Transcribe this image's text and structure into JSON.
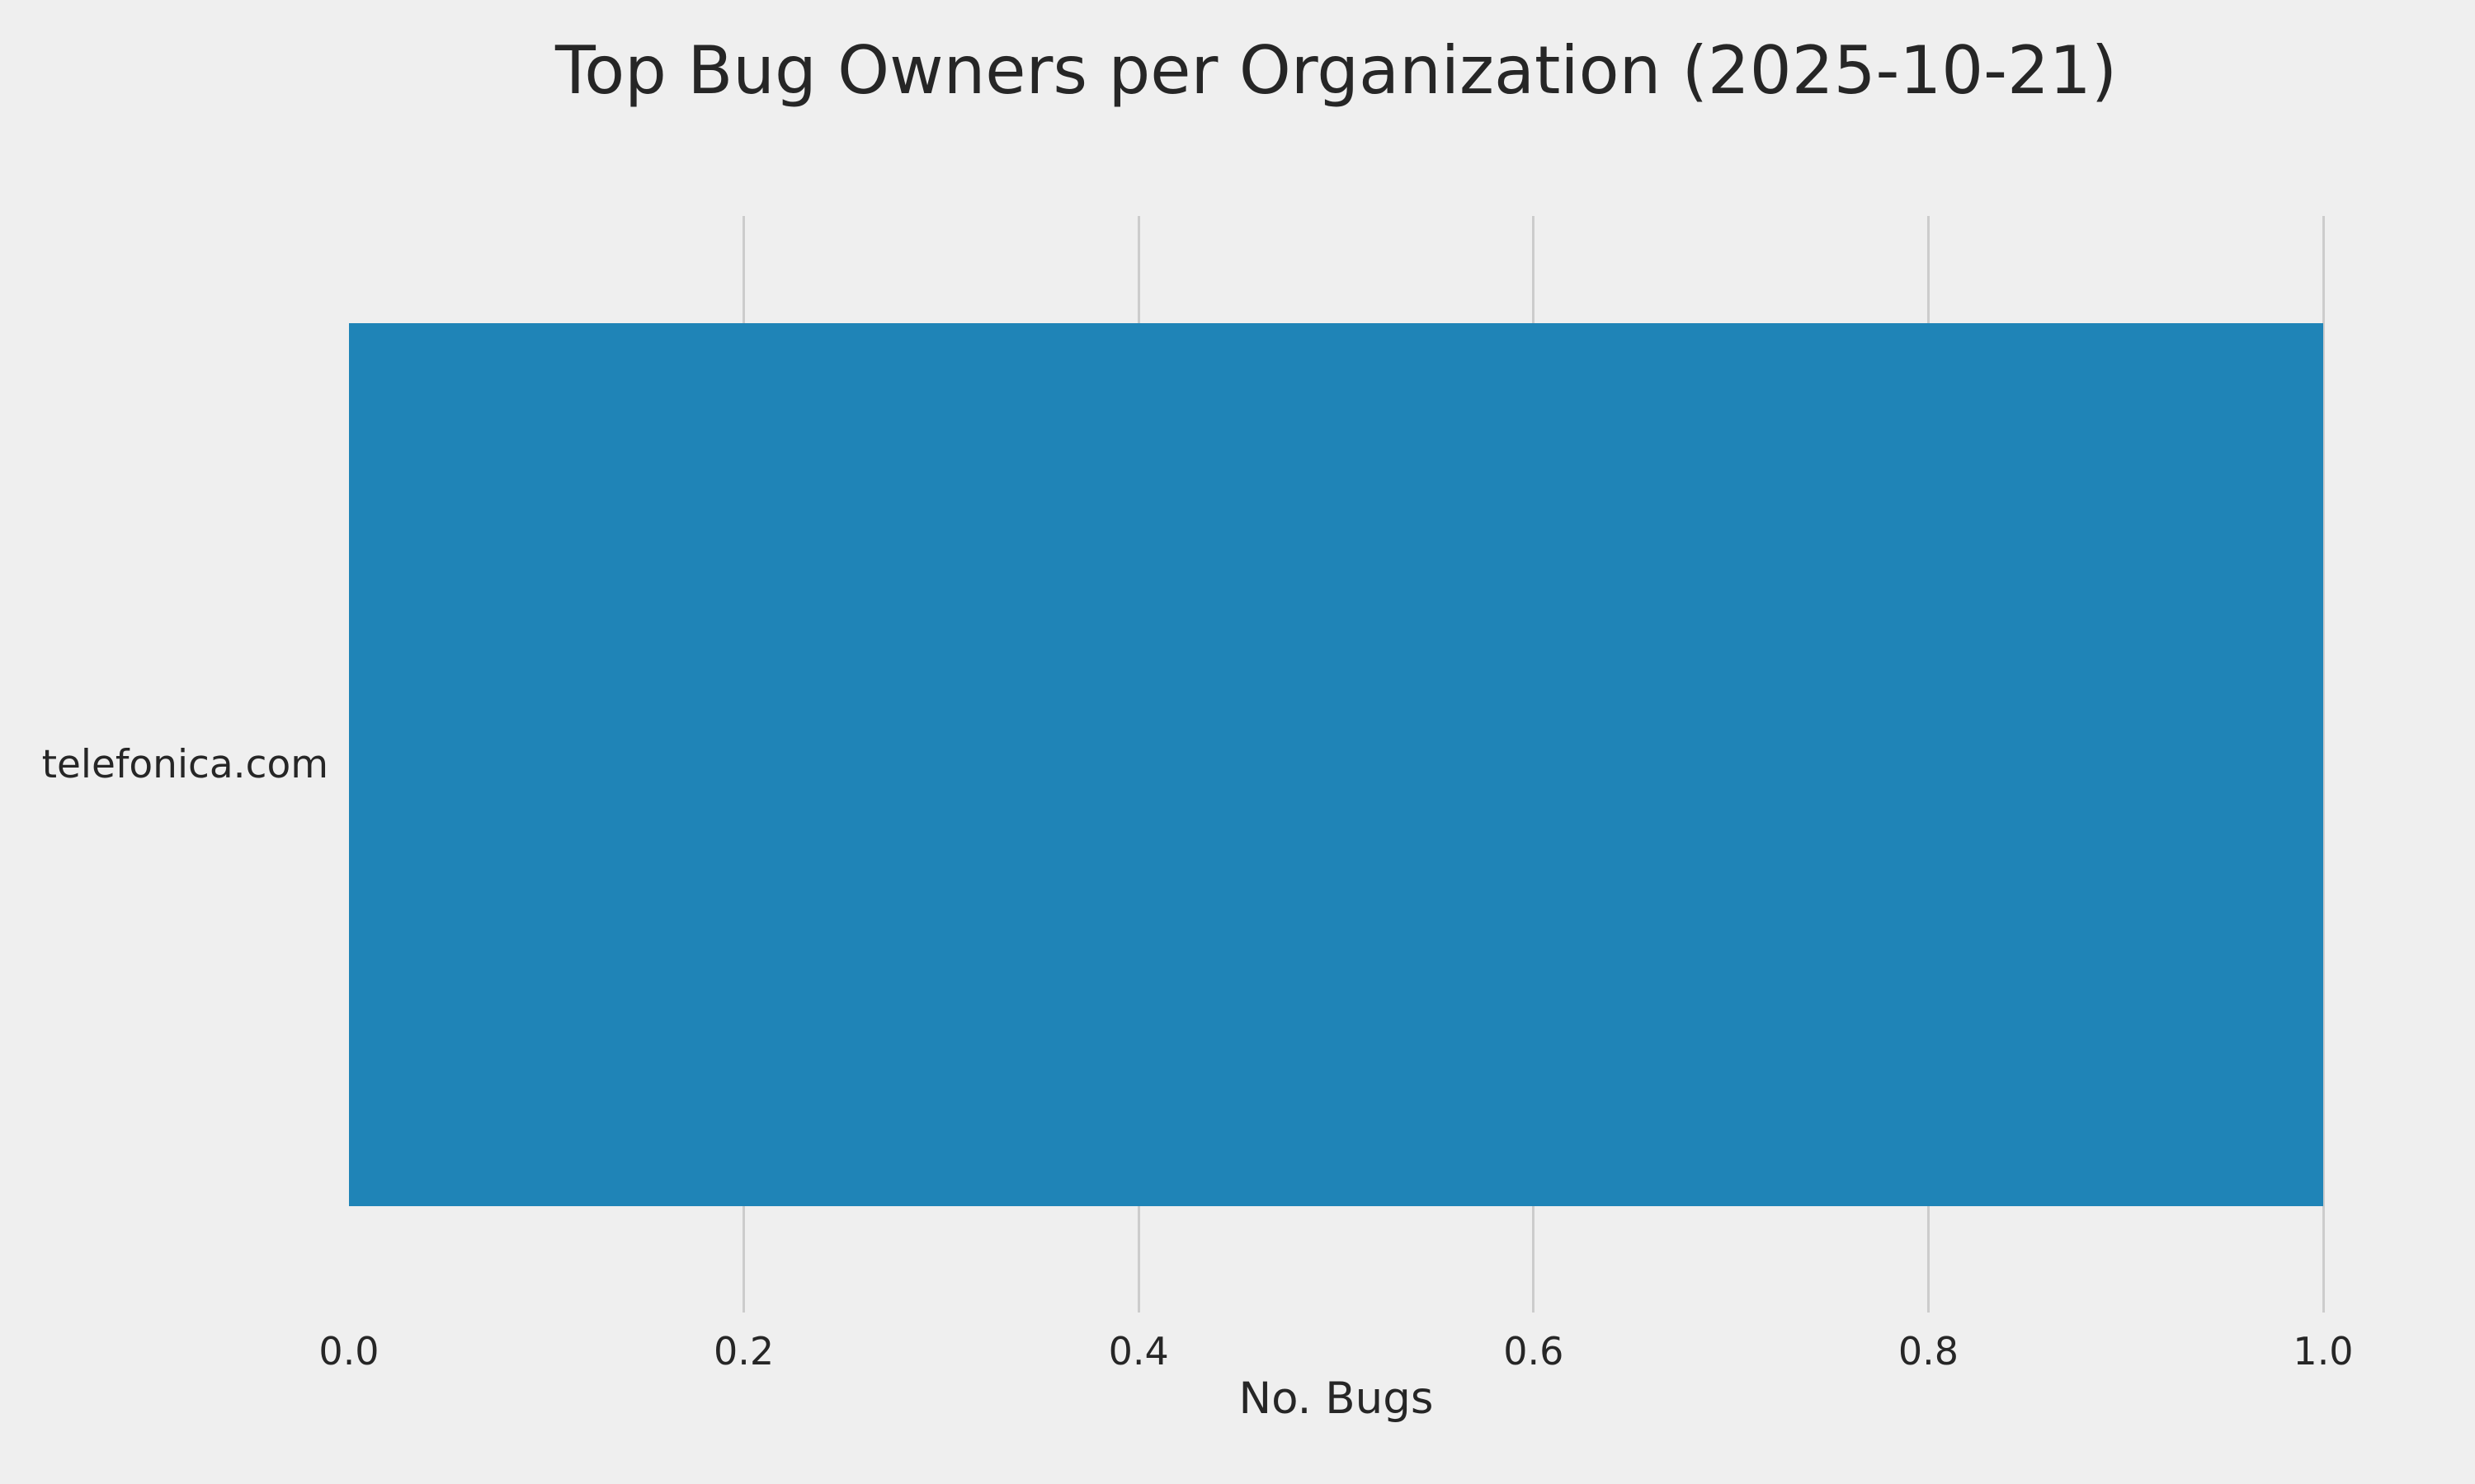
{
  "title": "Top Bug Owners per Organization (2025-10-21)",
  "chart_data": {
    "type": "bar",
    "orientation": "horizontal",
    "title": "Top Bug Owners per Organization (2025-10-21)",
    "categories": [
      "telefonica.com"
    ],
    "values": [
      1.0
    ],
    "series": [
      {
        "name": "No. Bugs",
        "values": [
          1.0
        ]
      }
    ],
    "xlabel": "No. Bugs",
    "ylabel": "",
    "xlim": [
      0.0,
      1.0
    ],
    "xticks": [
      {
        "value": 0.0,
        "label": "0.0"
      },
      {
        "value": 0.2,
        "label": "0.2"
      },
      {
        "value": 0.4,
        "label": "0.4"
      },
      {
        "value": 0.6,
        "label": "0.6"
      },
      {
        "value": 0.8,
        "label": "0.8"
      },
      {
        "value": 1.0,
        "label": "1.0"
      }
    ],
    "grid": true,
    "grid_axis": "x",
    "legend": false,
    "bar_color": "#1f84b7",
    "background_color": "#efefef",
    "grid_color": "#cccccc",
    "text_color": "#262626"
  }
}
